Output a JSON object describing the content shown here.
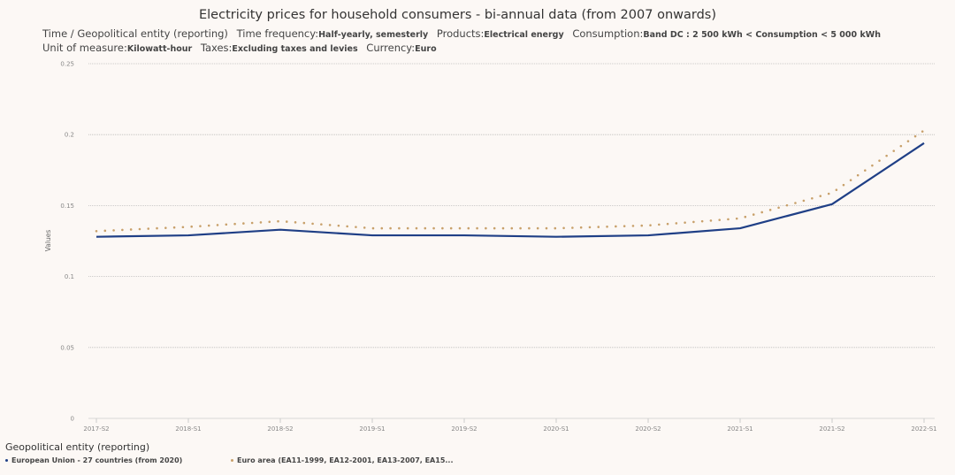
{
  "chart_data": {
    "type": "line",
    "title": "Electricity prices for household consumers - bi-annual data (from 2007 onwards)",
    "subtitle": [
      {
        "key": "Time / Geopolitical entity (reporting)",
        "value": ""
      },
      {
        "key": "Time frequency:",
        "value": "Half-yearly, semesterly"
      },
      {
        "key": "Products:",
        "value": "Electrical energy"
      },
      {
        "key": "Consumption:",
        "value": "Band DC : 2 500 kWh < Consumption < 5 000 kWh"
      },
      {
        "key": "Unit of measure:",
        "value": "Kilowatt-hour"
      },
      {
        "key": "Taxes:",
        "value": "Excluding taxes and levies"
      },
      {
        "key": "Currency:",
        "value": "Euro"
      }
    ],
    "xlabel": "",
    "ylabel": "Values",
    "ylim": [
      0,
      0.25
    ],
    "yticks": [
      0,
      0.05,
      0.1,
      0.15,
      0.2,
      0.25
    ],
    "ytick_labels": [
      "0",
      "0.05",
      "0.1",
      "0.15",
      "0.2",
      "0.25"
    ],
    "grid": true,
    "categories": [
      "2017-S2",
      "2018-S1",
      "2018-S2",
      "2019-S1",
      "2019-S2",
      "2020-S1",
      "2020-S2",
      "2021-S1",
      "2021-S2",
      "2022-S1"
    ],
    "series": [
      {
        "name": "European Union - 27 countries (from 2020)",
        "style": "solid",
        "color": "#1f3f86",
        "values": [
          0.128,
          0.129,
          0.133,
          0.129,
          0.129,
          0.128,
          0.129,
          0.134,
          0.151,
          0.194
        ]
      },
      {
        "name": "Euro area (EA11-1999, EA12-2001, EA13-2007, EA15...",
        "style": "dotted",
        "color": "#c8a06a",
        "values": [
          0.132,
          0.135,
          0.139,
          0.134,
          0.134,
          0.134,
          0.136,
          0.141,
          0.159,
          0.203
        ]
      }
    ],
    "legend": {
      "title": "Geopolitical entity (reporting)",
      "placement": "bottom-left"
    }
  }
}
